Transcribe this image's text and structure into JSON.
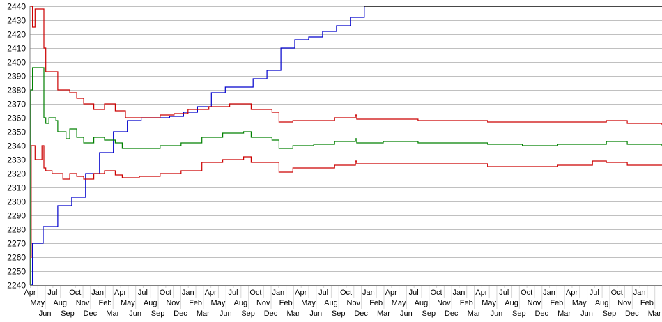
{
  "chart_data": {
    "type": "line",
    "title": "",
    "xlabel": "",
    "ylabel": "",
    "xlim": [
      0,
      100
    ],
    "ylim": [
      2240,
      2440
    ],
    "y_ticks": [
      2240,
      2250,
      2260,
      2270,
      2280,
      2290,
      2300,
      2310,
      2320,
      2330,
      2340,
      2350,
      2360,
      2370,
      2380,
      2390,
      2400,
      2410,
      2420,
      2430,
      2440
    ],
    "x_tick_labels": [
      "Apr",
      "May",
      "Jun",
      "Jul",
      "Aug",
      "Sep",
      "Oct",
      "Nov",
      "Dec",
      "Jan",
      "Feb",
      "Mar",
      "Apr",
      "May",
      "Jun",
      "Jul",
      "Aug",
      "Sep",
      "Oct",
      "Nov",
      "Dec",
      "Jan",
      "Feb",
      "Mar",
      "Apr",
      "May",
      "Jun",
      "Jul",
      "Aug",
      "Sep",
      "Oct",
      "Nov",
      "Dec",
      "Jan",
      "Feb",
      "Mar",
      "Apr",
      "May",
      "Jun",
      "Jul",
      "Aug",
      "Sep",
      "Oct",
      "Nov",
      "Dec",
      "Jan",
      "Feb",
      "Mar",
      "Apr",
      "May",
      "Jun",
      "Jul",
      "Aug",
      "Sep",
      "Oct",
      "Nov",
      "Dec",
      "Jan",
      "Feb",
      "Mar",
      "Apr",
      "May",
      "Jun",
      "Jul",
      "Aug",
      "Sep",
      "Oct",
      "Nov",
      "Dec",
      "Jan",
      "Feb",
      "Mar",
      "Apr",
      "May",
      "Jun",
      "Jul",
      "Aug",
      "Sep",
      "Oct",
      "Nov",
      "Dec",
      "Jan",
      "Feb",
      "Mar"
    ],
    "grid": "horizontal",
    "legend": "none",
    "series": [
      {
        "color": "#0000cc",
        "points": [
          [
            0,
            2240
          ],
          [
            0.4,
            2270
          ],
          [
            2.1,
            2282
          ],
          [
            4.4,
            2297
          ],
          [
            6.6,
            2303
          ],
          [
            8.8,
            2320
          ],
          [
            11.0,
            2335
          ],
          [
            13.2,
            2350
          ],
          [
            15.4,
            2358
          ],
          [
            17.6,
            2360
          ],
          [
            19.8,
            2360
          ],
          [
            22.1,
            2361
          ],
          [
            24.3,
            2364
          ],
          [
            26.5,
            2368
          ],
          [
            28.7,
            2378
          ],
          [
            30.9,
            2382
          ],
          [
            33.1,
            2382
          ],
          [
            35.3,
            2388
          ],
          [
            37.5,
            2394
          ],
          [
            39.7,
            2410
          ],
          [
            41.9,
            2416
          ],
          [
            44.1,
            2418
          ],
          [
            46.3,
            2422
          ],
          [
            48.5,
            2426
          ],
          [
            50.7,
            2432
          ],
          [
            52.9,
            2440
          ]
        ]
      },
      {
        "color": "#000000",
        "points": [
          [
            52.9,
            2440
          ],
          [
            100,
            2440
          ]
        ]
      },
      {
        "color": "#cc0000",
        "points": [
          [
            0,
            2440
          ],
          [
            0.4,
            2425
          ],
          [
            0.8,
            2438
          ],
          [
            1.9,
            2438
          ],
          [
            2.2,
            2410
          ],
          [
            2.5,
            2393
          ],
          [
            4.1,
            2393
          ],
          [
            4.4,
            2380
          ],
          [
            6.3,
            2378
          ],
          [
            7.4,
            2374
          ],
          [
            8.5,
            2370
          ],
          [
            10.1,
            2366
          ],
          [
            11.8,
            2370
          ],
          [
            13.5,
            2365
          ],
          [
            15.1,
            2360
          ],
          [
            17.3,
            2360
          ],
          [
            20.6,
            2362
          ],
          [
            22.8,
            2363
          ],
          [
            25.0,
            2366
          ],
          [
            28.3,
            2368
          ],
          [
            31.6,
            2370
          ],
          [
            33.8,
            2370
          ],
          [
            35.0,
            2366
          ],
          [
            38.3,
            2364
          ],
          [
            39.4,
            2357
          ],
          [
            41.6,
            2358
          ],
          [
            44.9,
            2358
          ],
          [
            48.2,
            2360
          ],
          [
            51.5,
            2362
          ],
          [
            51.7,
            2359
          ],
          [
            55.9,
            2359
          ],
          [
            61.4,
            2358
          ],
          [
            72.4,
            2357
          ],
          [
            77.9,
            2357
          ],
          [
            83.5,
            2357
          ],
          [
            91.2,
            2358
          ],
          [
            94.5,
            2356
          ],
          [
            100,
            2355
          ]
        ]
      },
      {
        "color": "#008000",
        "points": [
          [
            0,
            2240
          ],
          [
            0.1,
            2380
          ],
          [
            0.4,
            2396
          ],
          [
            1.9,
            2396
          ],
          [
            2.2,
            2360
          ],
          [
            2.5,
            2356
          ],
          [
            3.0,
            2360
          ],
          [
            4.1,
            2358
          ],
          [
            4.4,
            2350
          ],
          [
            5.7,
            2345
          ],
          [
            6.3,
            2352
          ],
          [
            7.4,
            2346
          ],
          [
            8.5,
            2342
          ],
          [
            10.1,
            2346
          ],
          [
            11.8,
            2344
          ],
          [
            13.5,
            2342
          ],
          [
            14.6,
            2338
          ],
          [
            17.3,
            2338
          ],
          [
            20.6,
            2340
          ],
          [
            23.9,
            2342
          ],
          [
            27.2,
            2346
          ],
          [
            30.5,
            2349
          ],
          [
            33.8,
            2350
          ],
          [
            35.0,
            2346
          ],
          [
            38.3,
            2344
          ],
          [
            39.4,
            2338
          ],
          [
            41.6,
            2340
          ],
          [
            44.9,
            2341
          ],
          [
            48.2,
            2343
          ],
          [
            51.5,
            2345
          ],
          [
            51.7,
            2342
          ],
          [
            55.9,
            2343
          ],
          [
            61.4,
            2342
          ],
          [
            72.4,
            2341
          ],
          [
            77.9,
            2340
          ],
          [
            83.5,
            2341
          ],
          [
            91.2,
            2343
          ],
          [
            94.5,
            2341
          ],
          [
            100,
            2340
          ]
        ]
      },
      {
        "color": "#cc0000",
        "points": [
          [
            0,
            2260
          ],
          [
            0.2,
            2340
          ],
          [
            0.8,
            2330
          ],
          [
            1.9,
            2340
          ],
          [
            2.2,
            2324
          ],
          [
            2.5,
            2322
          ],
          [
            3.5,
            2320
          ],
          [
            5.2,
            2316
          ],
          [
            6.3,
            2320
          ],
          [
            7.4,
            2318
          ],
          [
            8.5,
            2316
          ],
          [
            10.1,
            2320
          ],
          [
            11.8,
            2322
          ],
          [
            13.5,
            2319
          ],
          [
            14.6,
            2317
          ],
          [
            17.3,
            2318
          ],
          [
            20.6,
            2320
          ],
          [
            23.9,
            2322
          ],
          [
            27.2,
            2328
          ],
          [
            30.5,
            2330
          ],
          [
            33.8,
            2332
          ],
          [
            35.0,
            2328
          ],
          [
            38.3,
            2328
          ],
          [
            39.4,
            2321
          ],
          [
            41.6,
            2324
          ],
          [
            44.9,
            2324
          ],
          [
            48.2,
            2326
          ],
          [
            51.5,
            2329
          ],
          [
            51.7,
            2327
          ],
          [
            55.9,
            2327
          ],
          [
            61.4,
            2327
          ],
          [
            72.4,
            2325
          ],
          [
            77.9,
            2325
          ],
          [
            83.5,
            2326
          ],
          [
            89.0,
            2329
          ],
          [
            91.2,
            2328
          ],
          [
            94.5,
            2326
          ],
          [
            100,
            2326
          ]
        ]
      }
    ]
  }
}
